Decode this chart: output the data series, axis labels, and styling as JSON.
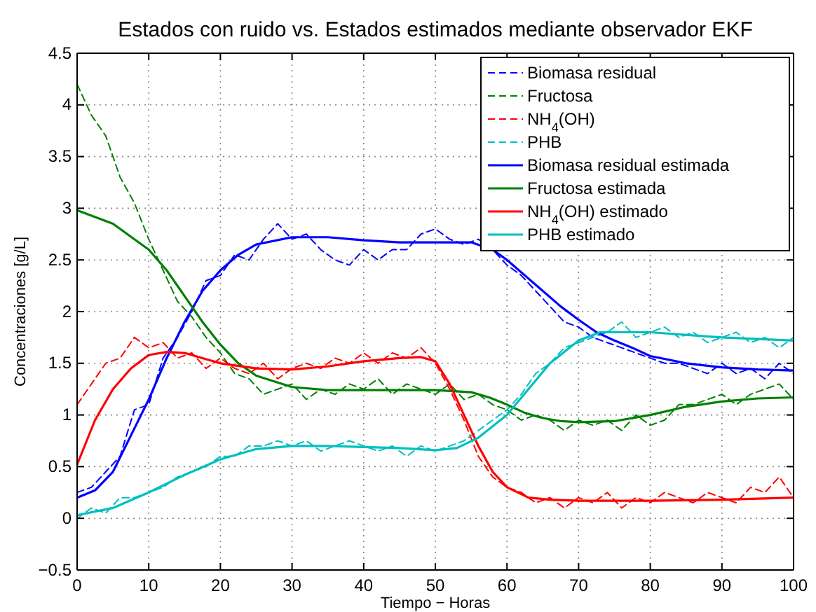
{
  "chart_data": {
    "type": "line",
    "title": "Estados con ruido vs. Estados estimados mediante observador EKF",
    "xlabel": "Tiempo − Horas",
    "ylabel": "Concentraciones [g/L]",
    "x": [
      0,
      2,
      4,
      6,
      8,
      10,
      12,
      14,
      16,
      18,
      20,
      22,
      24,
      26,
      28,
      30,
      32,
      34,
      36,
      38,
      40,
      42,
      44,
      46,
      48,
      50,
      52,
      54,
      56,
      58,
      60,
      62,
      64,
      66,
      68,
      70,
      72,
      74,
      76,
      78,
      80,
      82,
      84,
      86,
      88,
      90,
      92,
      94,
      96,
      98,
      100
    ],
    "xlim": [
      0,
      100
    ],
    "xticks": [
      0,
      10,
      20,
      30,
      40,
      50,
      60,
      70,
      80,
      90,
      100
    ],
    "ylim": [
      -0.5,
      4.5
    ],
    "yticks": [
      {
        "value": -0.5,
        "label": "−0.5"
      },
      0,
      0.5,
      1,
      1.5,
      2,
      2.5,
      3,
      3.5,
      4,
      4.5
    ],
    "grid": true,
    "legend": "top right",
    "series": [
      {
        "name": "Biomasa residual",
        "color": "#0000ff",
        "line_style": "dashed",
        "values": [
          0.25,
          0.3,
          0.45,
          0.6,
          1.05,
          1.1,
          1.55,
          1.75,
          2.0,
          2.3,
          2.35,
          2.55,
          2.5,
          2.7,
          2.85,
          2.7,
          2.75,
          2.6,
          2.5,
          2.45,
          2.6,
          2.5,
          2.6,
          2.6,
          2.75,
          2.8,
          2.7,
          2.65,
          2.7,
          2.6,
          2.45,
          2.35,
          2.2,
          2.05,
          1.9,
          1.85,
          1.75,
          1.7,
          1.65,
          1.6,
          1.55,
          1.5,
          1.5,
          1.45,
          1.4,
          1.5,
          1.4,
          1.45,
          1.35,
          1.5,
          1.4
        ]
      },
      {
        "name": "Fructosa",
        "color": "#008000",
        "line_style": "dashed",
        "values": [
          4.2,
          3.9,
          3.7,
          3.3,
          3.05,
          2.7,
          2.4,
          2.1,
          1.95,
          1.75,
          1.6,
          1.4,
          1.35,
          1.2,
          1.25,
          1.3,
          1.15,
          1.25,
          1.2,
          1.3,
          1.25,
          1.35,
          1.2,
          1.3,
          1.25,
          1.2,
          1.3,
          1.15,
          1.2,
          1.1,
          1.05,
          0.95,
          1.0,
          0.95,
          0.85,
          0.95,
          0.9,
          0.95,
          0.85,
          1.0,
          0.9,
          0.95,
          1.1,
          1.1,
          1.15,
          1.2,
          1.1,
          1.2,
          1.25,
          1.3,
          1.15
        ]
      },
      {
        "name": "NH$_{4}$(OH)",
        "color": "#ff0000",
        "line_style": "dashed",
        "values": [
          1.1,
          1.3,
          1.5,
          1.55,
          1.75,
          1.65,
          1.7,
          1.55,
          1.6,
          1.45,
          1.55,
          1.45,
          1.4,
          1.5,
          1.35,
          1.45,
          1.5,
          1.45,
          1.55,
          1.5,
          1.6,
          1.5,
          1.6,
          1.55,
          1.65,
          1.5,
          1.25,
          0.95,
          0.6,
          0.4,
          0.3,
          0.25,
          0.15,
          0.2,
          0.1,
          0.2,
          0.15,
          0.25,
          0.1,
          0.2,
          0.15,
          0.25,
          0.2,
          0.15,
          0.25,
          0.2,
          0.15,
          0.3,
          0.25,
          0.4,
          0.2
        ]
      },
      {
        "name": "PHB",
        "color": "#00bfbf",
        "line_style": "dashed",
        "values": [
          0.0,
          0.1,
          0.05,
          0.2,
          0.2,
          0.25,
          0.3,
          0.4,
          0.45,
          0.5,
          0.6,
          0.6,
          0.7,
          0.7,
          0.75,
          0.7,
          0.75,
          0.65,
          0.7,
          0.75,
          0.7,
          0.65,
          0.7,
          0.6,
          0.7,
          0.65,
          0.7,
          0.75,
          0.85,
          0.95,
          1.05,
          1.2,
          1.4,
          1.5,
          1.65,
          1.7,
          1.75,
          1.8,
          1.9,
          1.75,
          1.8,
          1.85,
          1.75,
          1.8,
          1.7,
          1.75,
          1.8,
          1.7,
          1.75,
          1.65,
          1.75
        ]
      },
      {
        "name": "Biomasa residual estimada",
        "color": "#0000ff",
        "line_style": "solid",
        "x": [
          0,
          2.5,
          5,
          7.5,
          10,
          12.5,
          15,
          17.5,
          20,
          22.5,
          25,
          30,
          35,
          40,
          45,
          50,
          55,
          58,
          60,
          62.5,
          65,
          67.5,
          70,
          72.5,
          75,
          77.5,
          80,
          85,
          90,
          95,
          100
        ],
        "values": [
          0.2,
          0.27,
          0.45,
          0.8,
          1.15,
          1.55,
          1.9,
          2.2,
          2.4,
          2.55,
          2.65,
          2.72,
          2.72,
          2.69,
          2.67,
          2.67,
          2.67,
          2.6,
          2.5,
          2.35,
          2.2,
          2.05,
          1.92,
          1.8,
          1.72,
          1.65,
          1.57,
          1.5,
          1.46,
          1.44,
          1.43
        ]
      },
      {
        "name": "Fructosa estimada",
        "color": "#008000",
        "line_style": "solid",
        "x": [
          0,
          5,
          10,
          12.5,
          15,
          17.5,
          20,
          22.5,
          25,
          30,
          35,
          40,
          45,
          50,
          55,
          57.5,
          60,
          62.5,
          65,
          67.5,
          70,
          75,
          80,
          85,
          90,
          95,
          100
        ],
        "values": [
          2.98,
          2.85,
          2.6,
          2.4,
          2.15,
          1.9,
          1.68,
          1.5,
          1.38,
          1.27,
          1.24,
          1.24,
          1.24,
          1.24,
          1.22,
          1.17,
          1.1,
          1.02,
          0.97,
          0.94,
          0.93,
          0.94,
          1.0,
          1.08,
          1.13,
          1.16,
          1.17
        ]
      },
      {
        "name": "NH$_{4}$(OH) estimado",
        "color": "#ff0000",
        "line_style": "solid",
        "x": [
          0,
          2.5,
          5,
          7.5,
          10,
          12.5,
          15,
          17.5,
          20,
          25,
          30,
          35,
          40,
          45,
          48,
          50,
          52,
          54,
          56,
          58,
          60,
          63,
          66,
          70,
          80,
          90,
          100
        ],
        "values": [
          0.52,
          0.95,
          1.25,
          1.45,
          1.58,
          1.61,
          1.6,
          1.55,
          1.5,
          1.45,
          1.44,
          1.47,
          1.52,
          1.55,
          1.56,
          1.52,
          1.3,
          1.0,
          0.7,
          0.45,
          0.3,
          0.2,
          0.18,
          0.17,
          0.17,
          0.18,
          0.2
        ]
      },
      {
        "name": "PHB estimado",
        "color": "#00bfbf",
        "line_style": "solid",
        "x": [
          0,
          5,
          10,
          15,
          20,
          25,
          30,
          35,
          40,
          45,
          50,
          53,
          56,
          60,
          63,
          66,
          70,
          73,
          75,
          80,
          90,
          100
        ],
        "values": [
          0.03,
          0.1,
          0.25,
          0.42,
          0.57,
          0.67,
          0.7,
          0.7,
          0.69,
          0.68,
          0.66,
          0.68,
          0.78,
          1.0,
          1.25,
          1.5,
          1.72,
          1.8,
          1.8,
          1.8,
          1.75,
          1.72
        ]
      }
    ]
  }
}
